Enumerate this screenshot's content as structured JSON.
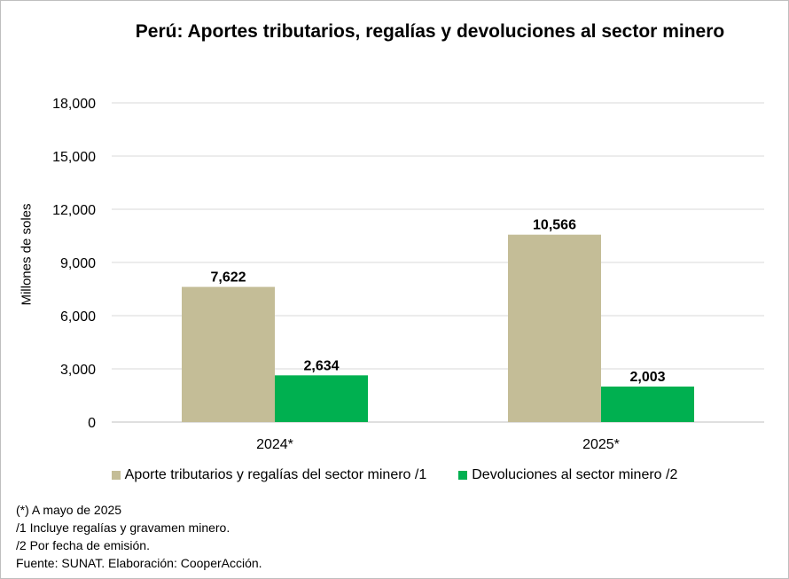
{
  "chart_data": {
    "type": "bar",
    "title": "Perú: Aportes tributarios, regalías y devoluciones al sector minero",
    "ylabel": "Millones de soles",
    "xlabel": "",
    "categories": [
      "2024*",
      "2025*"
    ],
    "series": [
      {
        "name": "Aporte tributarios y regalías del sector minero /1",
        "values": [
          7622,
          10566
        ],
        "labels": [
          "7,622",
          "10,566"
        ],
        "color": "#c4bd97"
      },
      {
        "name": "Devoluciones al sector minero /2",
        "values": [
          2634,
          2003
        ],
        "labels": [
          "2,634",
          "2,003"
        ],
        "color": "#00b050"
      }
    ],
    "ylim": [
      0,
      18000
    ],
    "yticks": [
      0,
      3000,
      6000,
      9000,
      12000,
      15000,
      18000
    ],
    "ytick_labels": [
      "0",
      "3,000",
      "6,000",
      "9,000",
      "12,000",
      "15,000",
      "18,000"
    ],
    "grid": true,
    "legend_position": "bottom"
  },
  "notes": [
    "(*) A mayo de 2025",
    "/1 Incluye regalías y gravamen minero.",
    "/2 Por fecha de emisión.",
    "Fuente: SUNAT. Elaboración: CooperAcción."
  ]
}
